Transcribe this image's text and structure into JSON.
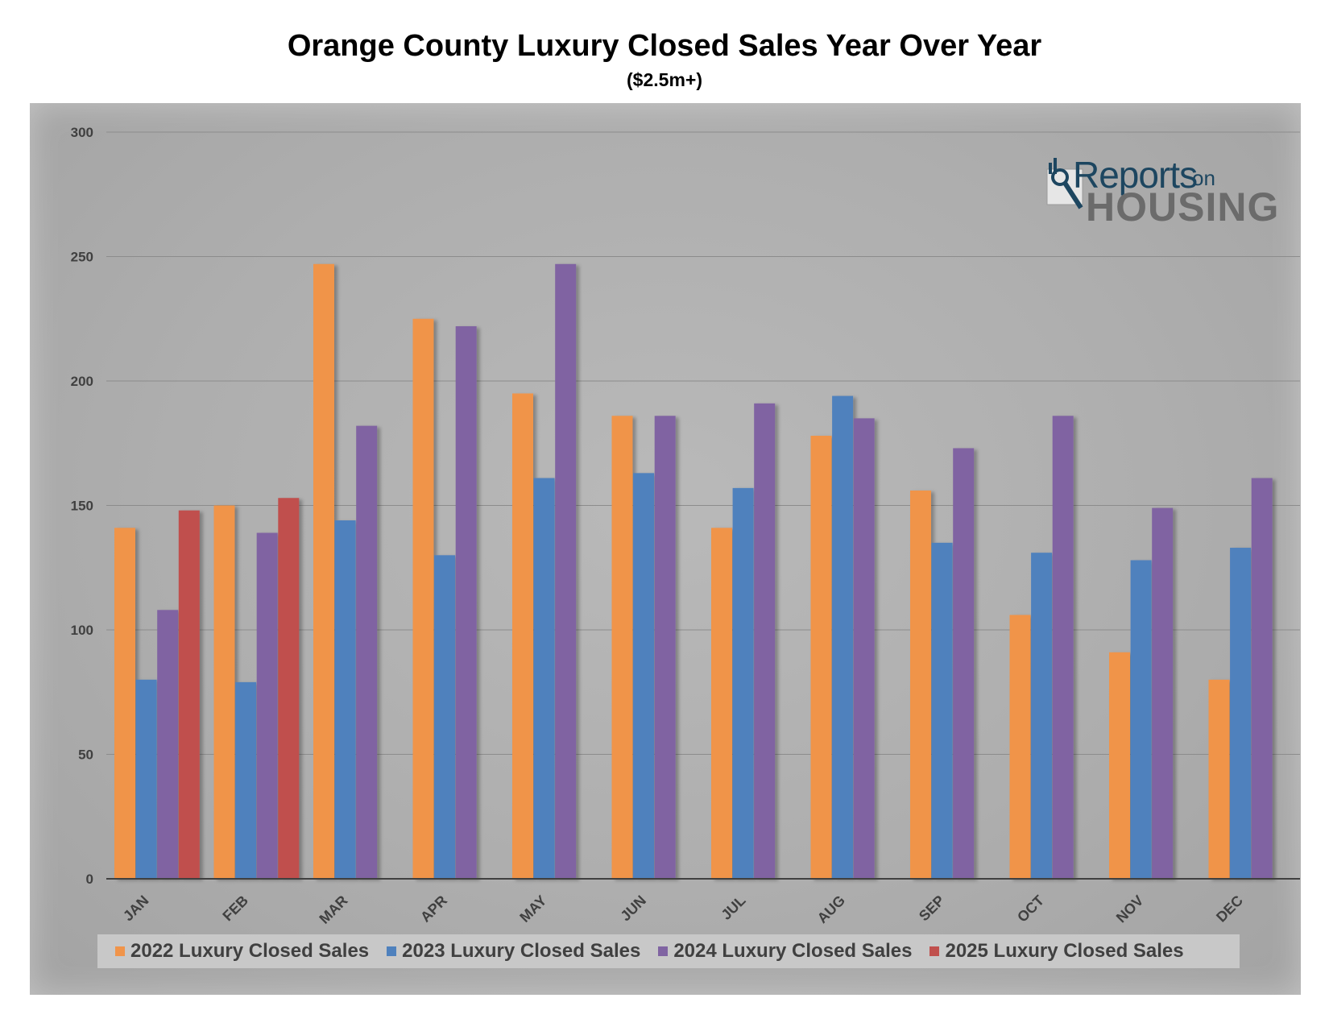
{
  "title": "Orange County Luxury Closed Sales Year Over Year",
  "subtitle": "($2.5m+)",
  "logo": {
    "word1": "Reports",
    "word2": "on",
    "word3": "HOUSING"
  },
  "colors": {
    "series": [
      "#f0944a",
      "#4f81bd",
      "#8064a2",
      "#c0504d"
    ],
    "gridline": "#8c8c8c",
    "axis": "#404040",
    "tick_text": "#404040"
  },
  "chart_data": {
    "type": "bar",
    "title": "Orange County Luxury Closed Sales Year Over Year",
    "subtitle": "($2.5m+)",
    "xlabel": "",
    "ylabel": "",
    "ylim": [
      0,
      300
    ],
    "yticks": [
      0,
      50,
      100,
      150,
      200,
      250,
      300
    ],
    "grid": true,
    "legend_position": "bottom",
    "categories": [
      "JAN",
      "FEB",
      "MAR",
      "APR",
      "MAY",
      "JUN",
      "JUL",
      "AUG",
      "SEP",
      "OCT",
      "NOV",
      "DEC"
    ],
    "series": [
      {
        "name": "2022 Luxury Closed Sales",
        "values": [
          141,
          150,
          247,
          225,
          195,
          186,
          141,
          178,
          156,
          106,
          91,
          80
        ]
      },
      {
        "name": "2023 Luxury Closed Sales",
        "values": [
          80,
          79,
          144,
          130,
          161,
          163,
          157,
          194,
          135,
          131,
          128,
          133
        ]
      },
      {
        "name": "2024 Luxury Closed Sales",
        "values": [
          108,
          139,
          182,
          222,
          247,
          186,
          191,
          185,
          173,
          186,
          149,
          161
        ]
      },
      {
        "name": "2025 Luxury Closed Sales",
        "values": [
          148,
          153,
          null,
          null,
          null,
          null,
          null,
          null,
          null,
          null,
          null,
          null
        ]
      }
    ]
  }
}
